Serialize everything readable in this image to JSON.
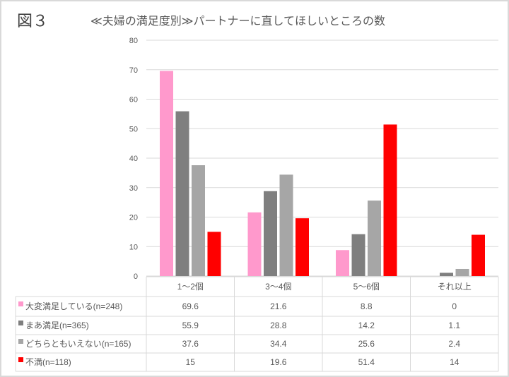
{
  "figure_label": "図３",
  "chart_data": {
    "type": "bar",
    "title": "≪夫婦の満足度別≫パートナーに直してほしいところの数",
    "categories": [
      "1～2個",
      "3～4個",
      "5～6個",
      "それ以上"
    ],
    "series": [
      {
        "name": "大変満足している(n=248)",
        "color": "#ff99cc",
        "values": [
          69.6,
          21.6,
          8.8,
          0
        ]
      },
      {
        "name": "まあ満足(n=365)",
        "color": "#7f7f7f",
        "values": [
          55.9,
          28.8,
          14.2,
          1.1
        ]
      },
      {
        "name": "どちらともいえない(n=165)",
        "color": "#a6a6a6",
        "values": [
          37.6,
          34.4,
          25.6,
          2.4
        ]
      },
      {
        "name": "不満(n=118)",
        "color": "#ff0000",
        "values": [
          15,
          19.6,
          51.4,
          14
        ]
      }
    ],
    "ylim": [
      0,
      80
    ],
    "yticks": [
      0,
      10,
      20,
      30,
      40,
      50,
      60,
      70,
      80
    ],
    "grid": true,
    "legend": "data-table"
  }
}
